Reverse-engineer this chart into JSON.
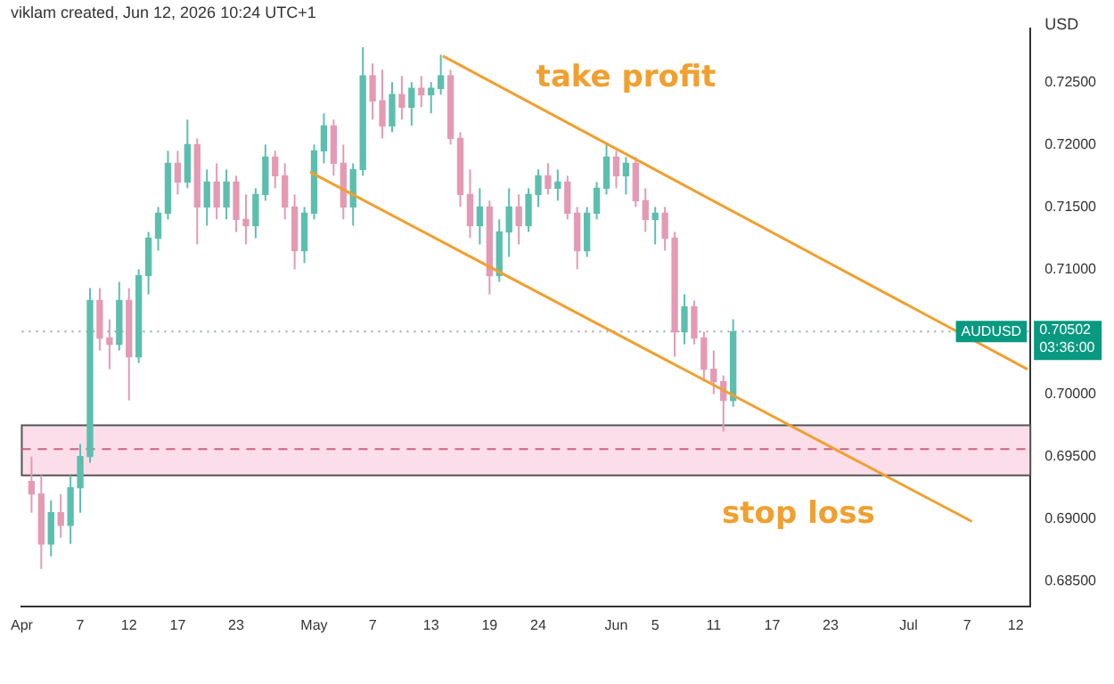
{
  "chart_data": {
    "type": "candlestick",
    "title": "viklam created, Jun 12, 2026 10:24 UTC+1",
    "ylabel": "USD",
    "x": [
      "2026-04-02",
      "2026-04-03",
      "2026-04-04",
      "2026-04-05",
      "2026-04-06",
      "2026-04-07",
      "2026-04-08",
      "2026-04-09",
      "2026-04-10",
      "2026-04-11",
      "2026-04-12",
      "2026-04-13",
      "2026-04-14",
      "2026-04-15",
      "2026-04-16",
      "2026-04-17",
      "2026-04-18",
      "2026-04-19",
      "2026-04-20",
      "2026-04-21",
      "2026-04-22",
      "2026-04-23",
      "2026-04-24",
      "2026-04-25",
      "2026-04-26",
      "2026-04-27",
      "2026-04-28",
      "2026-04-29",
      "2026-04-30",
      "2026-05-01",
      "2026-05-02",
      "2026-05-03",
      "2026-05-04",
      "2026-05-05",
      "2026-05-06",
      "2026-05-07",
      "2026-05-08",
      "2026-05-09",
      "2026-05-10",
      "2026-05-11",
      "2026-05-12",
      "2026-05-13",
      "2026-05-14",
      "2026-05-15",
      "2026-05-16",
      "2026-05-17",
      "2026-05-18",
      "2026-05-19",
      "2026-05-20",
      "2026-05-21",
      "2026-05-22",
      "2026-05-23",
      "2026-05-24",
      "2026-05-25",
      "2026-05-26",
      "2026-05-27",
      "2026-05-28",
      "2026-05-29",
      "2026-05-30",
      "2026-05-31",
      "2026-06-01",
      "2026-06-02",
      "2026-06-03",
      "2026-06-04",
      "2026-06-05",
      "2026-06-06",
      "2026-06-07",
      "2026-06-08",
      "2026-06-09",
      "2026-06-10",
      "2026-06-11",
      "2026-06-12",
      "2026-06-13"
    ],
    "ohlc": [
      [
        0.693,
        0.695,
        0.6905,
        0.692
      ],
      [
        0.692,
        0.6935,
        0.686,
        0.688
      ],
      [
        0.688,
        0.6915,
        0.687,
        0.6905
      ],
      [
        0.6905,
        0.692,
        0.6885,
        0.6895
      ],
      [
        0.6895,
        0.6935,
        0.688,
        0.6925
      ],
      [
        0.6925,
        0.696,
        0.6905,
        0.695
      ],
      [
        0.695,
        0.7085,
        0.6945,
        0.7075
      ],
      [
        0.7075,
        0.7085,
        0.7035,
        0.7045
      ],
      [
        0.7045,
        0.706,
        0.702,
        0.704
      ],
      [
        0.704,
        0.709,
        0.7035,
        0.7075
      ],
      [
        0.7075,
        0.7085,
        0.6995,
        0.703
      ],
      [
        0.703,
        0.71,
        0.7025,
        0.7095
      ],
      [
        0.7095,
        0.713,
        0.708,
        0.7125
      ],
      [
        0.7125,
        0.715,
        0.7115,
        0.7145
      ],
      [
        0.7145,
        0.7195,
        0.714,
        0.7185
      ],
      [
        0.7185,
        0.7195,
        0.716,
        0.717
      ],
      [
        0.717,
        0.722,
        0.7165,
        0.72
      ],
      [
        0.72,
        0.7205,
        0.712,
        0.715
      ],
      [
        0.715,
        0.718,
        0.7135,
        0.717
      ],
      [
        0.717,
        0.7185,
        0.714,
        0.715
      ],
      [
        0.715,
        0.718,
        0.714,
        0.717
      ],
      [
        0.717,
        0.7175,
        0.713,
        0.714
      ],
      [
        0.714,
        0.716,
        0.712,
        0.7135
      ],
      [
        0.7135,
        0.7165,
        0.7125,
        0.716
      ],
      [
        0.716,
        0.72,
        0.7155,
        0.719
      ],
      [
        0.719,
        0.7195,
        0.7165,
        0.7175
      ],
      [
        0.7175,
        0.7185,
        0.714,
        0.715
      ],
      [
        0.715,
        0.716,
        0.71,
        0.7115
      ],
      [
        0.7115,
        0.715,
        0.7105,
        0.7145
      ],
      [
        0.7145,
        0.72,
        0.714,
        0.7195
      ],
      [
        0.7195,
        0.7225,
        0.7185,
        0.7215
      ],
      [
        0.7215,
        0.722,
        0.7175,
        0.7185
      ],
      [
        0.7185,
        0.72,
        0.714,
        0.715
      ],
      [
        0.715,
        0.7185,
        0.7135,
        0.718
      ],
      [
        0.718,
        0.7278,
        0.7175,
        0.7255
      ],
      [
        0.7255,
        0.7265,
        0.722,
        0.7235
      ],
      [
        0.7235,
        0.726,
        0.7205,
        0.7215
      ],
      [
        0.7215,
        0.725,
        0.721,
        0.724
      ],
      [
        0.724,
        0.7255,
        0.722,
        0.723
      ],
      [
        0.723,
        0.725,
        0.7215,
        0.7245
      ],
      [
        0.7245,
        0.7255,
        0.723,
        0.724
      ],
      [
        0.724,
        0.725,
        0.7225,
        0.7245
      ],
      [
        0.7245,
        0.7272,
        0.724,
        0.7255
      ],
      [
        0.7255,
        0.726,
        0.72,
        0.7205
      ],
      [
        0.7205,
        0.721,
        0.715,
        0.716
      ],
      [
        0.716,
        0.718,
        0.7125,
        0.7135
      ],
      [
        0.7135,
        0.7165,
        0.712,
        0.715
      ],
      [
        0.715,
        0.7155,
        0.708,
        0.7095
      ],
      [
        0.7095,
        0.714,
        0.709,
        0.713
      ],
      [
        0.713,
        0.7165,
        0.711,
        0.715
      ],
      [
        0.715,
        0.716,
        0.712,
        0.7135
      ],
      [
        0.7135,
        0.7165,
        0.713,
        0.716
      ],
      [
        0.716,
        0.718,
        0.715,
        0.7175
      ],
      [
        0.7175,
        0.7185,
        0.716,
        0.7165
      ],
      [
        0.7165,
        0.718,
        0.7155,
        0.717
      ],
      [
        0.717,
        0.7175,
        0.714,
        0.7145
      ],
      [
        0.7145,
        0.715,
        0.71,
        0.7115
      ],
      [
        0.7115,
        0.715,
        0.711,
        0.7145
      ],
      [
        0.7145,
        0.717,
        0.714,
        0.7165
      ],
      [
        0.7165,
        0.72,
        0.716,
        0.719
      ],
      [
        0.719,
        0.7195,
        0.7165,
        0.7175
      ],
      [
        0.7175,
        0.719,
        0.716,
        0.7185
      ],
      [
        0.7185,
        0.719,
        0.715,
        0.7155
      ],
      [
        0.7155,
        0.7165,
        0.713,
        0.714
      ],
      [
        0.714,
        0.715,
        0.712,
        0.7145
      ],
      [
        0.7145,
        0.715,
        0.7115,
        0.7125
      ],
      [
        0.7125,
        0.713,
        0.703,
        0.705
      ],
      [
        0.705,
        0.708,
        0.704,
        0.707
      ],
      [
        0.707,
        0.7075,
        0.704,
        0.7045
      ],
      [
        0.7045,
        0.705,
        0.701,
        0.702
      ],
      [
        0.702,
        0.7035,
        0.7,
        0.701
      ],
      [
        0.701,
        0.7015,
        0.697,
        0.6995
      ],
      [
        0.6995,
        0.706,
        0.699,
        0.705
      ]
    ],
    "series": [
      {
        "type": "line",
        "color": "#f0a030",
        "x": [
          "2026-05-14T05:00",
          "2026-07-13T05:00"
        ],
        "values": [
          0.7271,
          0.702
        ]
      },
      {
        "type": "line",
        "color": "#f0a030",
        "x": [
          "2026-04-30T14:00",
          "2026-07-07T12:00"
        ],
        "values": [
          0.7178,
          0.6898
        ]
      }
    ],
    "bands": [
      {
        "axis": "y",
        "from": 0.6935,
        "to": 0.6975,
        "label": "stop loss",
        "color": "#f9d3e1"
      }
    ],
    "ref_lines": [
      {
        "axis": "y",
        "value": 0.6956,
        "line_style": "dashed",
        "color": "#d06080"
      },
      {
        "axis": "y",
        "value": 0.70502,
        "label": "AUDUSD",
        "line_style": "dotted",
        "color": "#9aa8a8"
      }
    ],
    "annotations": [
      "take profit",
      "0.70502",
      "03:36:00"
    ],
    "xlim": [
      "2026-04-01",
      "2026-07-13T12:00"
    ],
    "xticks": [
      {
        "value": "2026-04-01",
        "label": "Apr"
      },
      {
        "value": "2026-04-07",
        "label": "7"
      },
      {
        "value": "2026-04-12",
        "label": "12"
      },
      {
        "value": "2026-04-17",
        "label": "17"
      },
      {
        "value": "2026-04-23",
        "label": "23"
      },
      {
        "value": "2026-05-01",
        "label": "May"
      },
      {
        "value": "2026-05-07",
        "label": "7"
      },
      {
        "value": "2026-05-13",
        "label": "13"
      },
      {
        "value": "2026-05-19",
        "label": "19"
      },
      {
        "value": "2026-05-24",
        "label": "24"
      },
      {
        "value": "2026-06-01",
        "label": "Jun"
      },
      {
        "value": "2026-06-05",
        "label": "5"
      },
      {
        "value": "2026-06-11",
        "label": "11"
      },
      {
        "value": "2026-06-17",
        "label": "17"
      },
      {
        "value": "2026-06-23",
        "label": "23"
      },
      {
        "value": "2026-07-01",
        "label": "Jul"
      },
      {
        "value": "2026-07-07",
        "label": "7"
      },
      {
        "value": "2026-07-12",
        "label": "12"
      }
    ],
    "ylim": [
      0.683,
      0.7293
    ],
    "yticks": [
      {
        "value": 0.685,
        "label": "0.68500"
      },
      {
        "value": 0.69,
        "label": "0.69000"
      },
      {
        "value": 0.695,
        "label": "0.69500"
      },
      {
        "value": 0.7,
        "label": "0.70000"
      },
      {
        "value": 0.71,
        "label": "0.71000"
      },
      {
        "value": 0.715,
        "label": "0.71500"
      },
      {
        "value": 0.72,
        "label": "0.72000"
      },
      {
        "value": 0.725,
        "label": "0.72500"
      }
    ],
    "grid": false,
    "legend": false
  }
}
